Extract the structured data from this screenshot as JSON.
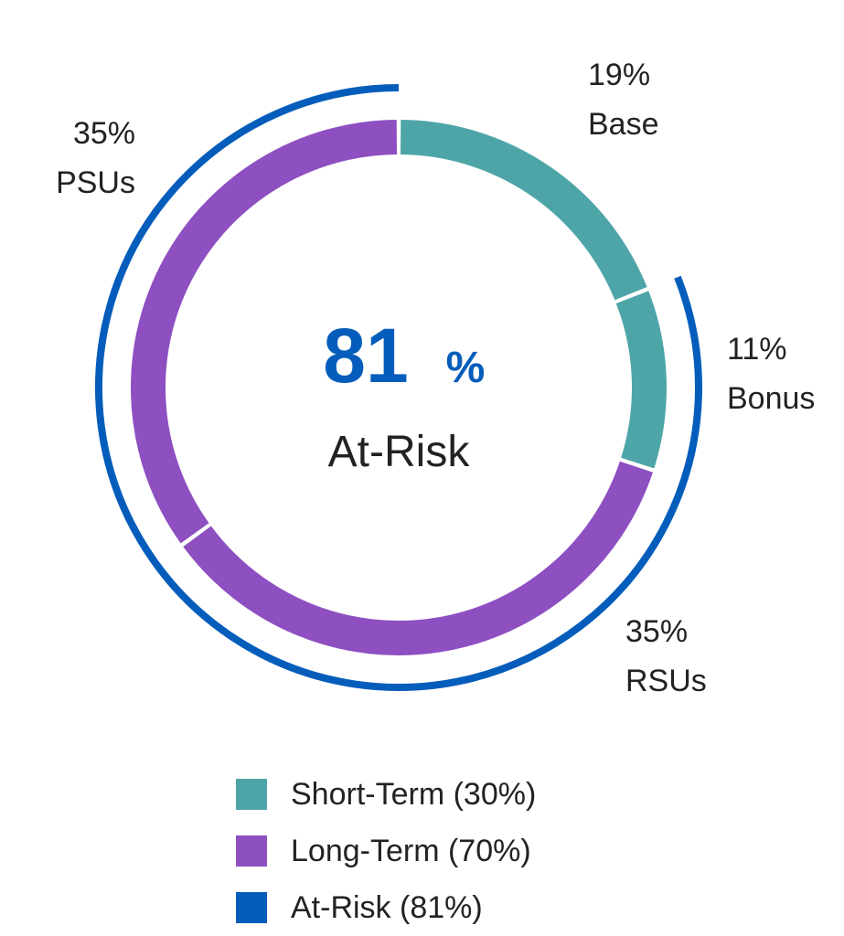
{
  "chart_data": {
    "type": "donut",
    "title": "",
    "center": {
      "value": "81",
      "unit": "%",
      "label": "At-Risk"
    },
    "segments": [
      {
        "name": "Base",
        "value": 19,
        "label_value": "19%",
        "term": "short"
      },
      {
        "name": "Bonus",
        "value": 11,
        "label_value": "11%",
        "term": "short"
      },
      {
        "name": "RSUs",
        "value": 35,
        "label_value": "35%",
        "term": "long"
      },
      {
        "name": "PSUs",
        "value": 35,
        "label_value": "35%",
        "term": "long"
      }
    ],
    "outer_arc": {
      "name": "At-Risk",
      "value": 81,
      "starts_after": "Base"
    },
    "legend": [
      {
        "key": "short",
        "label": "Short-Term (30%)",
        "color": "#4ea5a8"
      },
      {
        "key": "long",
        "label": "Long-Term (70%)",
        "color": "#8e4fc1"
      },
      {
        "key": "atrisk",
        "label": "At-Risk (81%)",
        "color": "#055dbb"
      }
    ],
    "colors": {
      "short": "#4ea5a8",
      "long": "#8e4fc1",
      "atrisk": "#055dbb",
      "center_value": "#055dbb"
    }
  }
}
